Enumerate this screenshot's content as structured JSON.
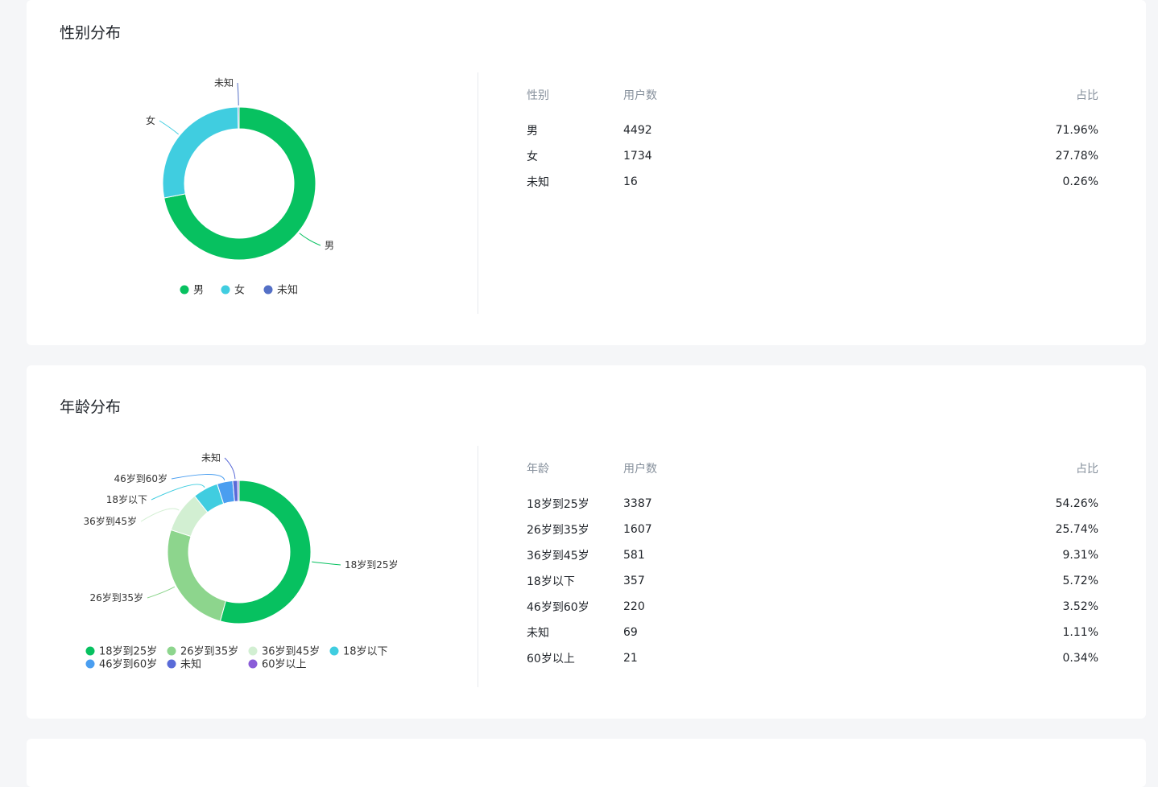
{
  "gender_section": {
    "title": "性别分布",
    "table": {
      "headers": [
        "性别",
        "用户数",
        "占比"
      ],
      "rows": [
        [
          "男",
          "4492",
          "71.96%"
        ],
        [
          "女",
          "1734",
          "27.78%"
        ],
        [
          "未知",
          "16",
          "0.26%"
        ]
      ]
    }
  },
  "age_section": {
    "title": "年龄分布",
    "table": {
      "headers": [
        "年龄",
        "用户数",
        "占比"
      ],
      "rows": [
        [
          "18岁到25岁",
          "3387",
          "54.26%"
        ],
        [
          "26岁到35岁",
          "1607",
          "25.74%"
        ],
        [
          "36岁到45岁",
          "581",
          "9.31%"
        ],
        [
          "18岁以下",
          "357",
          "5.72%"
        ],
        [
          "46岁到60岁",
          "220",
          "3.52%"
        ],
        [
          "未知",
          "69",
          "1.11%"
        ],
        [
          "60岁以上",
          "21",
          "0.34%"
        ]
      ]
    }
  },
  "chart_data": [
    {
      "type": "pie",
      "donut": true,
      "title": "性别分布",
      "categories": [
        "男",
        "女",
        "未知"
      ],
      "values": [
        4492,
        1734,
        16
      ],
      "colors": [
        "#07c160",
        "#40cde0",
        "#5470c6"
      ],
      "legend": "bottom"
    },
    {
      "type": "pie",
      "donut": true,
      "title": "年龄分布",
      "categories": [
        "18岁到25岁",
        "26岁到35岁",
        "36岁到45岁",
        "18岁以下",
        "46岁到60岁",
        "未知",
        "60岁以上"
      ],
      "values": [
        3387,
        1607,
        581,
        357,
        220,
        69,
        21
      ],
      "colors": [
        "#07c160",
        "#8dd58d",
        "#d2efd2",
        "#40cde0",
        "#4a9ef0",
        "#5a6bd8",
        "#8a5cd8"
      ],
      "legend": "bottom"
    }
  ]
}
